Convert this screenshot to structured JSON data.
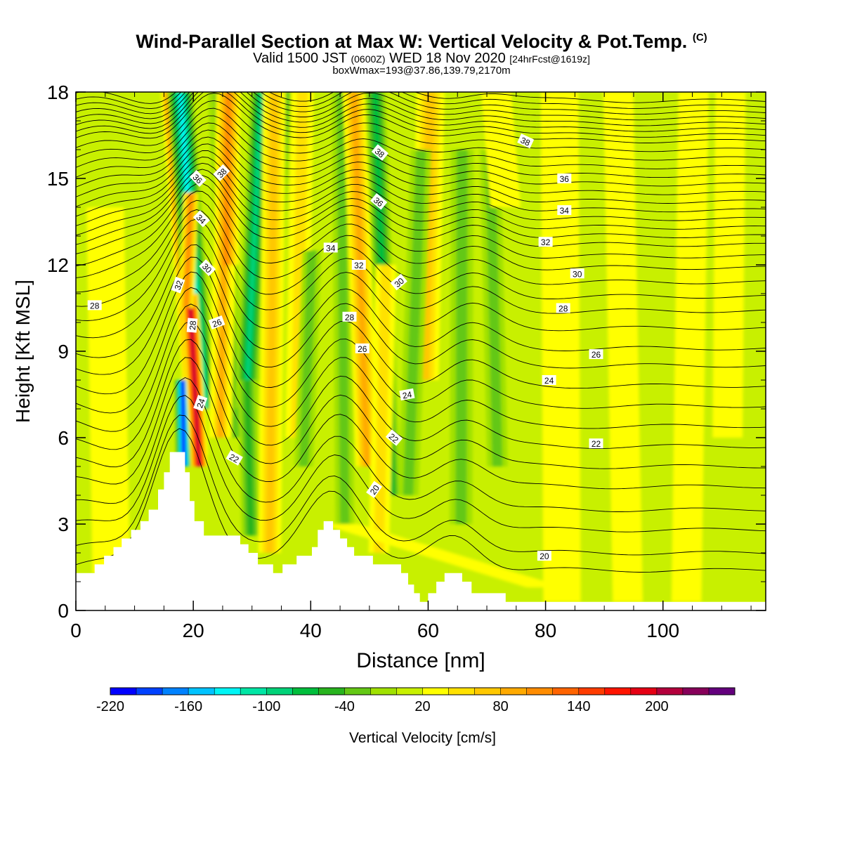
{
  "header": {
    "title_main": "Wind-Parallel Section at Max W: Vertical Velocity & Pot.Temp.",
    "title_mark": "(C)",
    "valid_prefix": "Valid 1500 JST",
    "valid_utc": "(0600Z)",
    "valid_date": "WED 18 Nov 2020",
    "forecast": "[24hrFcst@1619z]",
    "subtitle": "boxWmax=193@37.86,139.79,2170m"
  },
  "colors": {
    "scale": [
      "#0000ff",
      "#0041ff",
      "#0082ff",
      "#00c3ff",
      "#00f5f5",
      "#00e6a5",
      "#00d278",
      "#00be3c",
      "#28b41e",
      "#64c814",
      "#a0e100",
      "#c8f000",
      "#ffff00",
      "#ffe100",
      "#ffc800",
      "#ffaa00",
      "#ff8c00",
      "#ff6400",
      "#ff3c00",
      "#ff1400",
      "#e60014",
      "#b4003c",
      "#87005a",
      "#64007d"
    ],
    "background_level": "#c8f000",
    "terrain": "#ffffff"
  },
  "chart_data": {
    "type": "heatmap",
    "xlabel": "Distance [nm]",
    "ylabel": "Height [Kft MSL]",
    "xlim": [
      0,
      117.5
    ],
    "ylim": [
      0,
      18
    ],
    "x_ticks": [
      0,
      20,
      40,
      60,
      80,
      100
    ],
    "y_ticks": [
      0,
      3,
      6,
      9,
      12,
      15,
      18
    ],
    "grid": false,
    "colorbar": {
      "label": "Vertical Velocity [cm/s]",
      "min": -220,
      "max": 260,
      "step": 20,
      "tick_labels": [
        "-220",
        "-160",
        "-100",
        "-40",
        "20",
        "80",
        "140",
        "200"
      ],
      "tick_values": [
        -220,
        -160,
        -100,
        -40,
        20,
        80,
        140,
        200
      ]
    },
    "terrain": [
      [
        0,
        1.3
      ],
      [
        3.2,
        1.3
      ],
      [
        3.2,
        1.6
      ],
      [
        4.8,
        1.6
      ],
      [
        4.8,
        1.9
      ],
      [
        6.4,
        1.9
      ],
      [
        6.4,
        2.2
      ],
      [
        7.8,
        2.2
      ],
      [
        7.8,
        2.5
      ],
      [
        9.4,
        2.5
      ],
      [
        9.4,
        2.8
      ],
      [
        11,
        2.8
      ],
      [
        11,
        3.1
      ],
      [
        12.4,
        3.1
      ],
      [
        12.4,
        3.5
      ],
      [
        14,
        3.5
      ],
      [
        14,
        4.2
      ],
      [
        15,
        4.2
      ],
      [
        15,
        4.8
      ],
      [
        16,
        4.8
      ],
      [
        16,
        5.5
      ],
      [
        18.6,
        5.5
      ],
      [
        18.6,
        4.8
      ],
      [
        19.4,
        4.8
      ],
      [
        19.4,
        3.8
      ],
      [
        20.2,
        3.8
      ],
      [
        20.2,
        3.1
      ],
      [
        21.8,
        3.1
      ],
      [
        21.8,
        2.6
      ],
      [
        28,
        2.6
      ],
      [
        28,
        2.3
      ],
      [
        29.4,
        2.3
      ],
      [
        29.4,
        2.0
      ],
      [
        31,
        2.0
      ],
      [
        31,
        1.6
      ],
      [
        33.6,
        1.6
      ],
      [
        33.6,
        1.3
      ],
      [
        35.2,
        1.3
      ],
      [
        35.2,
        1.6
      ],
      [
        37.6,
        1.6
      ],
      [
        37.6,
        1.9
      ],
      [
        40.2,
        1.9
      ],
      [
        40.2,
        2.2
      ],
      [
        41.2,
        2.2
      ],
      [
        41.2,
        2.8
      ],
      [
        42.2,
        2.8
      ],
      [
        42.2,
        3.1
      ],
      [
        43.8,
        3.1
      ],
      [
        43.8,
        2.8
      ],
      [
        45,
        2.8
      ],
      [
        45,
        2.5
      ],
      [
        46.2,
        2.5
      ],
      [
        46.2,
        2.2
      ],
      [
        47.4,
        2.2
      ],
      [
        47.4,
        1.9
      ],
      [
        50.6,
        1.9
      ],
      [
        50.6,
        1.6
      ],
      [
        55.4,
        1.6
      ],
      [
        55.4,
        1.3
      ],
      [
        56.6,
        1.3
      ],
      [
        56.6,
        0.9
      ],
      [
        57.6,
        0.9
      ],
      [
        57.6,
        0.6
      ],
      [
        58.6,
        0.6
      ],
      [
        58.6,
        0.3
      ],
      [
        60,
        0.3
      ],
      [
        60,
        0.6
      ],
      [
        61.4,
        0.6
      ],
      [
        61.4,
        1.0
      ],
      [
        62.8,
        1.0
      ],
      [
        62.8,
        1.3
      ],
      [
        65.8,
        1.3
      ],
      [
        65.8,
        1.0
      ],
      [
        67.4,
        1.0
      ],
      [
        67.4,
        0.6
      ],
      [
        73.2,
        0.6
      ],
      [
        73.2,
        0.3
      ],
      [
        117.5,
        0.3
      ]
    ],
    "w_features": [
      {
        "x0": 16.2,
        "z0": 18,
        "x1": 20.8,
        "z1": 5.4,
        "w": 140,
        "width": 1.1
      },
      {
        "x0": 17.8,
        "z0": 18,
        "x1": 21.6,
        "z1": 7.0,
        "w": -140,
        "width": 1.4
      },
      {
        "x0": 18.2,
        "z0": 8.0,
        "x1": 18.4,
        "z1": 5.0,
        "w": -220,
        "width": 0.9
      },
      {
        "x0": 19.4,
        "z0": 11.0,
        "x1": 21.0,
        "z1": 5.0,
        "w": 200,
        "width": 0.9
      },
      {
        "x0": 19.6,
        "z0": 14.5,
        "x1": 18.8,
        "z1": 10.5,
        "w": 100,
        "width": 0.8
      },
      {
        "x0": 24.4,
        "z0": 18,
        "x1": 27.0,
        "z1": 6.0,
        "w": -40,
        "width": 1.2
      },
      {
        "x0": 26.0,
        "z0": 18,
        "x1": 25.6,
        "z1": 12.0,
        "w": 100,
        "width": 1.3
      },
      {
        "x0": 25.2,
        "z0": 12.0,
        "x1": 24.6,
        "z1": 6.0,
        "w": 90,
        "width": 1.2
      },
      {
        "x0": 31.6,
        "z0": 18,
        "x1": 29.0,
        "z1": 7.0,
        "w": -100,
        "width": 1.2
      },
      {
        "x0": 29.2,
        "z0": 8.0,
        "x1": 29.8,
        "z1": 2.6,
        "w": -60,
        "width": 1.0
      },
      {
        "x0": 35.4,
        "z0": 18,
        "x1": 32.6,
        "z1": 8.0,
        "w": -50,
        "width": 1.0
      },
      {
        "x0": 33.8,
        "z0": 18,
        "x1": 33.0,
        "z1": 2.0,
        "w": 60,
        "width": 1.2
      },
      {
        "x0": 38.6,
        "z0": 18,
        "x1": 37.6,
        "z1": 6.0,
        "w": 40,
        "width": 1.2
      },
      {
        "x0": 40.2,
        "z0": 12.5,
        "x1": 38.8,
        "z1": 5.0,
        "w": -40,
        "width": 1.0
      },
      {
        "x0": 45.2,
        "z0": 18,
        "x1": 45.8,
        "z1": 3.0,
        "w": -40,
        "width": 1.0
      },
      {
        "x0": 47.4,
        "z0": 18,
        "x1": 49.6,
        "z1": 5.0,
        "w": 80,
        "width": 1.2
      },
      {
        "x0": 51.0,
        "z0": 18,
        "x1": 53.6,
        "z1": 4.0,
        "w": -70,
        "width": 1.1
      },
      {
        "x0": 52.8,
        "z0": 12.0,
        "x1": 51.6,
        "z1": 2.0,
        "w": 40,
        "width": 1.1
      },
      {
        "x0": 60.4,
        "z0": 18,
        "x1": 59.4,
        "z1": 8.0,
        "w": 60,
        "width": 1.5
      },
      {
        "x0": 58.8,
        "z0": 16.0,
        "x1": 56.6,
        "z1": 4.0,
        "w": -40,
        "width": 1.1
      },
      {
        "x0": 65.8,
        "z0": 16.0,
        "x1": 65.6,
        "z1": 3.0,
        "w": -40,
        "width": 1.2
      },
      {
        "x0": 70.6,
        "z0": 16.0,
        "x1": 71.8,
        "z1": 5.0,
        "w": -40,
        "width": 1.1
      },
      {
        "x0": 71.6,
        "z0": 18,
        "x1": 73.2,
        "z1": 14.0,
        "w": 20,
        "width": 1.6
      },
      {
        "x0": 82.4,
        "z0": 18,
        "x1": 82.8,
        "z1": 0.3,
        "w": 20,
        "width": 2.0
      },
      {
        "x0": 92.4,
        "z0": 18,
        "x1": 94.0,
        "z1": 0.3,
        "w": 20,
        "width": 1.6
      },
      {
        "x0": 105.2,
        "z0": 18,
        "x1": 104.0,
        "z1": 0.3,
        "w": 20,
        "width": 1.6
      },
      {
        "x0": 111.5,
        "z0": 18,
        "x1": 111.0,
        "z1": 6.0,
        "w": 20,
        "width": 1.6
      },
      {
        "x0": 5.0,
        "z0": 14.0,
        "x1": 6.0,
        "z1": 1.3,
        "w": 20,
        "width": 2.0
      },
      {
        "x0": 45.0,
        "z0": 3.0,
        "x1": 80.0,
        "z1": 0.8,
        "w": 20,
        "width": 2.0
      }
    ],
    "theta_contours": {
      "levels": [
        19.5,
        20,
        20.5,
        21,
        21.5,
        22,
        22.5,
        23,
        23.5,
        24,
        24.5,
        25,
        25.5,
        26,
        26.5,
        27,
        27.5,
        28,
        28.5,
        29,
        29.5,
        30,
        30.5,
        31,
        31.5,
        32,
        32.5,
        33,
        33.5,
        34,
        34.5,
        35,
        35.5,
        36,
        36.5,
        37,
        37.5,
        38
      ],
      "background_heights": [
        1.4,
        2.0,
        2.8,
        3.5,
        4.3,
        5.0,
        5.7,
        6.4,
        7.1,
        7.8,
        8.5,
        9.1,
        9.8,
        10.4,
        10.9,
        11.4,
        11.9,
        12.3,
        12.7,
        13.0,
        13.3,
        13.6,
        13.9,
        14.2,
        14.5,
        14.8,
        15.1,
        15.4,
        15.7,
        16.0,
        16.3,
        16.5,
        16.7,
        16.9,
        17.1,
        17.3,
        17.5,
        17.7
      ]
    },
    "theta_labels": [
      {
        "text": "28",
        "x": 3.2,
        "z": 10.6,
        "rot": 0
      },
      {
        "text": "36",
        "x": 20.8,
        "z": 15.0,
        "rot": 45
      },
      {
        "text": "38",
        "x": 24.8,
        "z": 15.2,
        "rot": -45
      },
      {
        "text": "34",
        "x": 21.4,
        "z": 13.6,
        "rot": 45
      },
      {
        "text": "30",
        "x": 22.4,
        "z": 11.9,
        "rot": 45
      },
      {
        "text": "32",
        "x": 17.4,
        "z": 11.3,
        "rot": -70
      },
      {
        "text": "28",
        "x": 19.8,
        "z": 9.9,
        "rot": -85
      },
      {
        "text": "26",
        "x": 24.0,
        "z": 10.0,
        "rot": -20
      },
      {
        "text": "24",
        "x": 21.2,
        "z": 7.2,
        "rot": -70
      },
      {
        "text": "22",
        "x": 27.0,
        "z": 5.3,
        "rot": 30
      },
      {
        "text": "38",
        "x": 51.8,
        "z": 15.9,
        "rot": 40
      },
      {
        "text": "36",
        "x": 51.6,
        "z": 14.2,
        "rot": 40
      },
      {
        "text": "34",
        "x": 43.4,
        "z": 12.6,
        "rot": 0
      },
      {
        "text": "32",
        "x": 48.2,
        "z": 12.0,
        "rot": 0
      },
      {
        "text": "30",
        "x": 55.0,
        "z": 11.4,
        "rot": -40
      },
      {
        "text": "28",
        "x": 46.6,
        "z": 10.2,
        "rot": 0
      },
      {
        "text": "26",
        "x": 48.8,
        "z": 9.1,
        "rot": 0
      },
      {
        "text": "24",
        "x": 56.4,
        "z": 7.5,
        "rot": -10
      },
      {
        "text": "22",
        "x": 54.2,
        "z": 6.0,
        "rot": 40
      },
      {
        "text": "20",
        "x": 50.8,
        "z": 4.2,
        "rot": -55
      },
      {
        "text": "38",
        "x": 76.6,
        "z": 16.3,
        "rot": 25
      },
      {
        "text": "36",
        "x": 83.2,
        "z": 15.0,
        "rot": 0
      },
      {
        "text": "34",
        "x": 83.2,
        "z": 13.9,
        "rot": 0
      },
      {
        "text": "32",
        "x": 80.0,
        "z": 12.8,
        "rot": 0
      },
      {
        "text": "30",
        "x": 85.4,
        "z": 11.7,
        "rot": 0
      },
      {
        "text": "28",
        "x": 83.0,
        "z": 10.5,
        "rot": 0
      },
      {
        "text": "26",
        "x": 88.6,
        "z": 8.9,
        "rot": 0
      },
      {
        "text": "24",
        "x": 80.6,
        "z": 8.0,
        "rot": 0
      },
      {
        "text": "22",
        "x": 88.6,
        "z": 5.8,
        "rot": 0
      },
      {
        "text": "20",
        "x": 79.8,
        "z": 1.9,
        "rot": 0
      }
    ]
  }
}
